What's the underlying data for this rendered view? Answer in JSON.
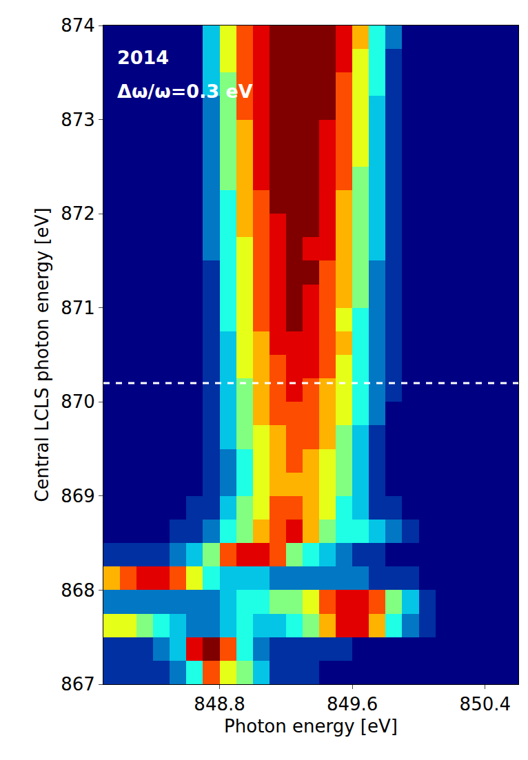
{
  "chart_data": {
    "type": "heatmap",
    "xlabel": "Photon energy [eV]",
    "ylabel": "Central LCLS photon energy [eV]",
    "annotations": [
      "2014",
      "Δω/ω=0.3 eV"
    ],
    "hline": 870.2,
    "xlim": [
      848.1,
      850.6
    ],
    "ylim": [
      867,
      874
    ],
    "xticks": [
      848.8,
      849.6,
      850.4
    ],
    "yticks": [
      867,
      868,
      869,
      870,
      871,
      872,
      873,
      874
    ],
    "zlim": [
      0,
      10
    ],
    "x": [
      848.15,
      848.25,
      848.35,
      848.45,
      848.55,
      848.65,
      848.75,
      848.85,
      848.95,
      849.05,
      849.15,
      849.25,
      849.35,
      849.45,
      849.55,
      849.65,
      849.75,
      849.85,
      849.95,
      850.05,
      850.15,
      850.25,
      850.35,
      850.45,
      850.55
    ],
    "y": [
      867.125,
      867.375,
      867.625,
      867.875,
      868.125,
      868.375,
      868.625,
      868.875,
      869.125,
      869.375,
      869.625,
      869.875,
      870.125,
      870.375,
      870.625,
      870.875,
      871.125,
      871.375,
      871.625,
      871.875,
      872.125,
      872.375,
      872.625,
      872.875,
      873.125,
      873.375,
      873.625,
      873.875
    ],
    "z": [
      [
        1,
        1,
        1,
        1,
        2,
        4,
        8,
        6,
        5,
        3,
        1,
        1,
        1,
        0,
        0,
        0,
        0,
        0,
        0,
        0,
        0,
        0,
        0,
        0,
        0
      ],
      [
        1,
        1,
        1,
        2,
        3,
        9,
        10,
        8,
        4,
        2,
        1,
        1,
        1,
        1,
        1,
        0,
        0,
        0,
        0,
        0,
        0,
        0,
        0,
        0,
        0
      ],
      [
        6,
        6,
        5,
        4,
        3,
        2,
        2,
        3,
        4,
        3,
        3,
        4,
        5,
        7,
        9,
        9,
        7,
        4,
        2,
        1,
        0,
        0,
        0,
        0,
        0
      ],
      [
        2,
        2,
        2,
        2,
        2,
        2,
        2,
        3,
        4,
        4,
        5,
        5,
        6,
        8,
        9,
        9,
        8,
        5,
        3,
        1,
        0,
        0,
        0,
        0,
        0
      ],
      [
        7,
        8,
        9,
        9,
        8,
        6,
        4,
        3,
        3,
        3,
        2,
        2,
        2,
        2,
        2,
        2,
        1,
        1,
        1,
        0,
        0,
        0,
        0,
        0,
        0
      ],
      [
        1,
        1,
        1,
        1,
        2,
        3,
        5,
        8,
        9,
        9,
        8,
        5,
        4,
        3,
        2,
        1,
        1,
        0,
        0,
        0,
        0,
        0,
        0,
        0,
        0
      ],
      [
        0,
        0,
        0,
        0,
        1,
        1,
        2,
        4,
        5,
        7,
        8,
        9,
        7,
        5,
        4,
        4,
        3,
        2,
        1,
        0,
        0,
        0,
        0,
        0,
        0
      ],
      [
        0,
        0,
        0,
        0,
        0,
        1,
        1,
        3,
        5,
        6,
        8,
        8,
        7,
        6,
        4,
        3,
        1,
        1,
        0,
        0,
        0,
        0,
        0,
        0,
        0
      ],
      [
        0,
        0,
        0,
        0,
        0,
        0,
        1,
        2,
        4,
        6,
        7,
        7,
        7,
        6,
        5,
        3,
        1,
        0,
        0,
        0,
        0,
        0,
        0,
        0,
        0
      ],
      [
        0,
        0,
        0,
        0,
        0,
        0,
        1,
        2,
        4,
        6,
        7,
        8,
        7,
        6,
        5,
        3,
        1,
        0,
        0,
        0,
        0,
        0,
        0,
        0,
        0
      ],
      [
        0,
        0,
        0,
        0,
        0,
        0,
        1,
        3,
        5,
        6,
        7,
        8,
        8,
        7,
        5,
        3,
        1,
        0,
        0,
        0,
        0,
        0,
        0,
        0,
        0
      ],
      [
        0,
        0,
        0,
        0,
        0,
        0,
        1,
        3,
        5,
        7,
        8,
        8,
        8,
        7,
        6,
        4,
        2,
        0,
        0,
        0,
        0,
        0,
        0,
        0,
        0
      ],
      [
        0,
        0,
        0,
        0,
        0,
        0,
        1,
        3,
        5,
        7,
        8,
        9,
        8,
        7,
        6,
        4,
        2,
        1,
        0,
        0,
        0,
        0,
        0,
        0,
        0
      ],
      [
        0,
        0,
        0,
        0,
        0,
        0,
        1,
        3,
        6,
        7,
        8,
        9,
        9,
        8,
        6,
        4,
        2,
        1,
        0,
        0,
        0,
        0,
        0,
        0,
        0
      ],
      [
        0,
        0,
        0,
        0,
        0,
        0,
        1,
        3,
        6,
        7,
        9,
        9,
        9,
        8,
        7,
        4,
        2,
        1,
        0,
        0,
        0,
        0,
        0,
        0,
        0
      ],
      [
        0,
        0,
        0,
        0,
        0,
        0,
        1,
        4,
        6,
        8,
        9,
        10,
        9,
        8,
        6,
        4,
        2,
        1,
        0,
        0,
        0,
        0,
        0,
        0,
        0
      ],
      [
        0,
        0,
        0,
        0,
        0,
        0,
        1,
        4,
        6,
        8,
        9,
        10,
        9,
        8,
        7,
        5,
        2,
        1,
        0,
        0,
        0,
        0,
        0,
        0,
        0
      ],
      [
        0,
        0,
        0,
        0,
        0,
        0,
        1,
        4,
        6,
        8,
        9,
        10,
        10,
        8,
        7,
        5,
        2,
        1,
        0,
        0,
        0,
        0,
        0,
        0,
        0
      ],
      [
        0,
        0,
        0,
        0,
        0,
        0,
        2,
        4,
        6,
        8,
        9,
        10,
        9,
        9,
        7,
        5,
        3,
        1,
        0,
        0,
        0,
        0,
        0,
        0,
        0
      ],
      [
        0,
        0,
        0,
        0,
        0,
        0,
        2,
        4,
        7,
        8,
        9,
        10,
        10,
        9,
        7,
        5,
        3,
        1,
        0,
        0,
        0,
        0,
        0,
        0,
        0
      ],
      [
        0,
        0,
        0,
        0,
        0,
        0,
        2,
        4,
        7,
        8,
        10,
        10,
        10,
        9,
        7,
        5,
        3,
        1,
        0,
        0,
        0,
        0,
        0,
        0,
        0
      ],
      [
        0,
        0,
        0,
        0,
        0,
        0,
        2,
        5,
        7,
        9,
        10,
        10,
        10,
        9,
        8,
        5,
        3,
        1,
        0,
        0,
        0,
        0,
        0,
        0,
        0
      ],
      [
        0,
        0,
        0,
        0,
        0,
        0,
        2,
        5,
        7,
        9,
        10,
        10,
        10,
        9,
        8,
        6,
        3,
        1,
        0,
        0,
        0,
        0,
        0,
        0,
        0
      ],
      [
        0,
        0,
        0,
        0,
        0,
        0,
        2,
        5,
        7,
        9,
        10,
        10,
        10,
        9,
        8,
        6,
        3,
        1,
        0,
        0,
        0,
        0,
        0,
        0,
        0
      ],
      [
        0,
        0,
        0,
        0,
        0,
        0,
        2,
        5,
        8,
        9,
        10,
        10,
        10,
        10,
        8,
        6,
        3,
        1,
        0,
        0,
        0,
        0,
        0,
        0,
        0
      ],
      [
        0,
        0,
        0,
        0,
        0,
        0,
        3,
        5,
        8,
        9,
        10,
        10,
        10,
        10,
        8,
        6,
        4,
        1,
        0,
        0,
        0,
        0,
        0,
        0,
        0
      ],
      [
        0,
        0,
        0,
        0,
        0,
        0,
        3,
        6,
        8,
        9,
        10,
        10,
        10,
        10,
        9,
        6,
        4,
        1,
        0,
        0,
        0,
        0,
        0,
        0,
        0
      ],
      [
        0,
        0,
        0,
        0,
        0,
        0,
        3,
        6,
        8,
        9,
        10,
        10,
        10,
        10,
        9,
        7,
        4,
        2,
        0,
        0,
        0,
        0,
        0,
        0,
        0
      ]
    ]
  }
}
